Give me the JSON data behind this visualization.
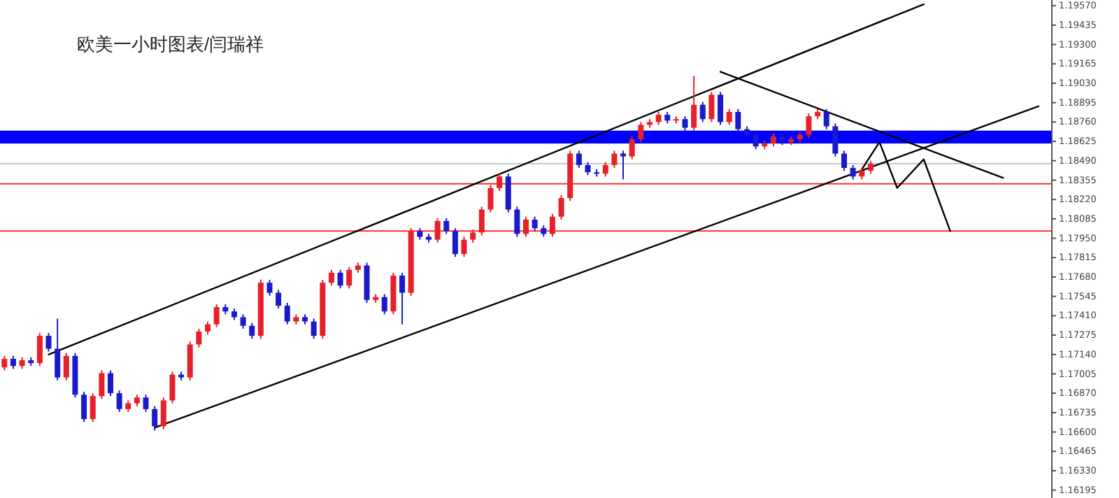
{
  "chart_data": {
    "type": "candlestick",
    "title": "欧美一小时图表/闫瑞祥",
    "categories": [
      null,
      null,
      null,
      null,
      null,
      null,
      null,
      null,
      null,
      null,
      null,
      null,
      null,
      null,
      null,
      null,
      null,
      null,
      null,
      null,
      null,
      null,
      null,
      null,
      null,
      null,
      null,
      null,
      null,
      null,
      null,
      null,
      null,
      null,
      null,
      null,
      null,
      null,
      null,
      null,
      null,
      null,
      null,
      null,
      null,
      null,
      null,
      null,
      null,
      null,
      null,
      null,
      null,
      null,
      null,
      null,
      null,
      null,
      null,
      null,
      null,
      null,
      null,
      null,
      null,
      null,
      null,
      null,
      null,
      null,
      null,
      null,
      null,
      null,
      null,
      null,
      null,
      null,
      null,
      null,
      null,
      null,
      null,
      null,
      null,
      null,
      null,
      null,
      null,
      null,
      null,
      null,
      null,
      null,
      null,
      null,
      null,
      null,
      null,
      null,
      null,
      null,
      null,
      null,
      null,
      null,
      null,
      null,
      null,
      null,
      null,
      null,
      null,
      null,
      null,
      null,
      null,
      null,
      null
    ],
    "ohlc": [
      [
        1.1705,
        1.1713,
        1.1703,
        1.1711
      ],
      [
        1.1711,
        1.1713,
        1.1704,
        1.1706
      ],
      [
        1.1706,
        1.1712,
        1.1704,
        1.171
      ],
      [
        1.171,
        1.1712,
        1.1706,
        1.1708
      ],
      [
        1.1708,
        1.1729,
        1.1706,
        1.1727
      ],
      [
        1.1727,
        1.1729,
        1.1716,
        1.1718
      ],
      [
        1.1718,
        1.1739,
        1.1696,
        1.1698
      ],
      [
        1.1698,
        1.1715,
        1.1696,
        1.1713
      ],
      [
        1.1713,
        1.1715,
        1.1684,
        1.1686
      ],
      [
        1.1686,
        1.1688,
        1.1667,
        1.1669
      ],
      [
        1.1669,
        1.1687,
        1.1667,
        1.1685
      ],
      [
        1.1685,
        1.1703,
        1.1683,
        1.1701
      ],
      [
        1.1701,
        1.1703,
        1.1685,
        1.1687
      ],
      [
        1.1687,
        1.1689,
        1.1674,
        1.1676
      ],
      [
        1.1676,
        1.1682,
        1.1674,
        1.168
      ],
      [
        1.168,
        1.1686,
        1.1678,
        1.1684
      ],
      [
        1.1684,
        1.1686,
        1.1674,
        1.1676
      ],
      [
        1.1676,
        1.1678,
        1.1661,
        1.1664
      ],
      [
        1.1664,
        1.1684,
        1.1662,
        1.1682
      ],
      [
        1.1682,
        1.1702,
        1.168,
        1.17
      ],
      [
        1.17,
        1.1702,
        1.1696,
        1.1698
      ],
      [
        1.1698,
        1.1723,
        1.1696,
        1.1721
      ],
      [
        1.1721,
        1.1732,
        1.1719,
        1.173
      ],
      [
        1.173,
        1.1737,
        1.1728,
        1.1735
      ],
      [
        1.1735,
        1.1749,
        1.1733,
        1.1747
      ],
      [
        1.1747,
        1.1749,
        1.1742,
        1.1744
      ],
      [
        1.1744,
        1.1746,
        1.1738,
        1.174
      ],
      [
        1.174,
        1.1742,
        1.1732,
        1.1734
      ],
      [
        1.1734,
        1.1736,
        1.1725,
        1.1727
      ],
      [
        1.1727,
        1.1766,
        1.1725,
        1.1764
      ],
      [
        1.1764,
        1.1766,
        1.1755,
        1.1757
      ],
      [
        1.1757,
        1.1759,
        1.1746,
        1.1748
      ],
      [
        1.1748,
        1.175,
        1.1735,
        1.1737
      ],
      [
        1.1737,
        1.1742,
        1.1735,
        1.174
      ],
      [
        1.174,
        1.1742,
        1.1735,
        1.1737
      ],
      [
        1.1737,
        1.1739,
        1.1725,
        1.1727
      ],
      [
        1.1727,
        1.1766,
        1.1725,
        1.1764
      ],
      [
        1.1764,
        1.1773,
        1.1762,
        1.1771
      ],
      [
        1.1771,
        1.1773,
        1.176,
        1.1762
      ],
      [
        1.1762,
        1.1775,
        1.176,
        1.1773
      ],
      [
        1.1773,
        1.1778,
        1.1771,
        1.1776
      ],
      [
        1.1776,
        1.1778,
        1.175,
        1.1752
      ],
      [
        1.1752,
        1.1756,
        1.175,
        1.1754
      ],
      [
        1.1754,
        1.1756,
        1.1742,
        1.1744
      ],
      [
        1.1744,
        1.1771,
        1.1742,
        1.1769
      ],
      [
        1.1769,
        1.1771,
        1.1735,
        1.1757
      ],
      [
        1.1757,
        1.1802,
        1.1755,
        1.18
      ],
      [
        1.18,
        1.1802,
        1.1794,
        1.1796
      ],
      [
        1.1796,
        1.1798,
        1.1792,
        1.1794
      ],
      [
        1.1794,
        1.1809,
        1.1792,
        1.1807
      ],
      [
        1.1807,
        1.1809,
        1.1798,
        1.18
      ],
      [
        1.18,
        1.1802,
        1.1782,
        1.1784
      ],
      [
        1.1784,
        1.1796,
        1.1782,
        1.1794
      ],
      [
        1.1794,
        1.1801,
        1.1792,
        1.1799
      ],
      [
        1.1799,
        1.1817,
        1.1797,
        1.1815
      ],
      [
        1.1815,
        1.1832,
        1.1813,
        1.183
      ],
      [
        1.183,
        1.184,
        1.1828,
        1.1838
      ],
      [
        1.1838,
        1.184,
        1.1813,
        1.1815
      ],
      [
        1.1815,
        1.1817,
        1.1796,
        1.1798
      ],
      [
        1.1798,
        1.181,
        1.1796,
        1.1808
      ],
      [
        1.1808,
        1.181,
        1.18,
        1.1802
      ],
      [
        1.1802,
        1.1804,
        1.1796,
        1.1798
      ],
      [
        1.1798,
        1.1812,
        1.1796,
        1.181
      ],
      [
        1.181,
        1.1825,
        1.1808,
        1.1823
      ],
      [
        1.1823,
        1.1856,
        1.1821,
        1.1854
      ],
      [
        1.1854,
        1.1856,
        1.1844,
        1.1846
      ],
      [
        1.1846,
        1.1848,
        1.1839,
        1.1841
      ],
      [
        1.1841,
        1.1843,
        1.1838,
        1.184
      ],
      [
        1.184,
        1.1848,
        1.1838,
        1.1846
      ],
      [
        1.1846,
        1.1856,
        1.1844,
        1.1854
      ],
      [
        1.1854,
        1.1856,
        1.1836,
        1.1852
      ],
      [
        1.1852,
        1.1866,
        1.185,
        1.1864
      ],
      [
        1.1864,
        1.1876,
        1.1862,
        1.1874
      ],
      [
        1.1874,
        1.1878,
        1.1872,
        1.1876
      ],
      [
        1.1876,
        1.1883,
        1.1874,
        1.1881
      ],
      [
        1.1881,
        1.1883,
        1.1875,
        1.1877
      ],
      [
        1.1877,
        1.188,
        1.1875,
        1.1878
      ],
      [
        1.1878,
        1.188,
        1.187,
        1.1872
      ],
      [
        1.1872,
        1.1908,
        1.187,
        1.1888
      ],
      [
        1.1888,
        1.189,
        1.1876,
        1.1878
      ],
      [
        1.1878,
        1.1897,
        1.1876,
        1.1895
      ],
      [
        1.1895,
        1.1897,
        1.1874,
        1.1876
      ],
      [
        1.1876,
        1.1885,
        1.1874,
        1.1883
      ],
      [
        1.1883,
        1.1885,
        1.1869,
        1.1871
      ],
      [
        1.1871,
        1.1873,
        1.1865,
        1.1867
      ],
      [
        1.1867,
        1.1869,
        1.1857,
        1.1859
      ],
      [
        1.1859,
        1.1863,
        1.1857,
        1.1861
      ],
      [
        1.1861,
        1.1868,
        1.1859,
        1.1866
      ],
      [
        1.1866,
        1.1868,
        1.186,
        1.1862
      ],
      [
        1.1862,
        1.1866,
        1.186,
        1.1864
      ],
      [
        1.1864,
        1.1869,
        1.1862,
        1.1867
      ],
      [
        1.1867,
        1.1882,
        1.1865,
        1.188
      ],
      [
        1.188,
        1.1885,
        1.1878,
        1.1883
      ],
      [
        1.1883,
        1.1885,
        1.1871,
        1.1873
      ],
      [
        1.1873,
        1.1875,
        1.1852,
        1.1854
      ],
      [
        1.1854,
        1.1856,
        1.1842,
        1.1844
      ],
      [
        1.1844,
        1.1846,
        1.1836,
        1.1838
      ],
      [
        1.1838,
        1.1844,
        1.1836,
        1.1842
      ],
      [
        1.1842,
        1.1849,
        1.184,
        1.1847
      ],
      null,
      null,
      null,
      null,
      null,
      null,
      null,
      null,
      null,
      null,
      null,
      null,
      null,
      null,
      null,
      null,
      null,
      null,
      null,
      null
    ],
    "colors": [
      "#e8202a",
      "#1a1acc",
      "#e8202a",
      "#1a1acc",
      "#e8202a",
      "#1a1acc",
      "#1a1acc",
      "#e8202a",
      "#1a1acc",
      "#1a1acc",
      "#e8202a",
      "#e8202a",
      "#1a1acc",
      "#1a1acc",
      "#e8202a",
      "#e8202a",
      "#1a1acc",
      "#1a1acc",
      "#e8202a",
      "#e8202a",
      "#1a1acc",
      "#e8202a",
      "#e8202a",
      "#e8202a",
      "#e8202a",
      "#1a1acc",
      "#1a1acc",
      "#1a1acc",
      "#1a1acc",
      "#e8202a",
      "#1a1acc",
      "#1a1acc",
      "#1a1acc",
      "#e8202a",
      "#1a1acc",
      "#1a1acc",
      "#e8202a",
      "#e8202a",
      "#1a1acc",
      "#e8202a",
      "#e8202a",
      "#1a1acc",
      "#e8202a",
      "#1a1acc",
      "#e8202a",
      "#1a1acc",
      "#e8202a",
      "#1a1acc",
      "#1a1acc",
      "#e8202a",
      "#1a1acc",
      "#1a1acc",
      "#e8202a",
      "#e8202a",
      "#e8202a",
      "#e8202a",
      "#e8202a",
      "#1a1acc",
      "#1a1acc",
      "#e8202a",
      "#1a1acc",
      "#1a1acc",
      "#e8202a",
      "#e8202a",
      "#e8202a",
      "#1a1acc",
      "#1a1acc",
      "#1a1acc",
      "#e8202a",
      "#e8202a",
      "#1a1acc",
      "#e8202a",
      "#e8202a",
      "#e8202a",
      "#e8202a",
      "#1a1acc",
      "#e8202a",
      "#1a1acc",
      "#e8202a",
      "#1a1acc",
      "#e8202a",
      "#1a1acc",
      "#e8202a",
      "#1a1acc",
      "#1a1acc",
      "#1a1acc",
      "#e8202a",
      "#e8202a",
      "#1a1acc",
      "#e8202a",
      "#e8202a",
      "#e8202a",
      "#e8202a",
      "#1a1acc",
      "#1a1acc",
      "#1a1acc",
      "#1a1acc",
      "#e8202a",
      "#e8202a",
      null,
      null,
      null,
      null,
      null,
      null,
      null,
      null,
      null,
      null,
      null,
      null,
      null,
      null,
      null,
      null,
      null,
      null,
      null,
      null
    ],
    "series": [
      {
        "type": "line",
        "color": "#000000",
        "values": [
          null,
          null,
          null,
          null,
          null,
          1.1714,
          null,
          null,
          null,
          null,
          null,
          null,
          null,
          null,
          null,
          null,
          null,
          null,
          null,
          null,
          null,
          null,
          null,
          null,
          null,
          null,
          null,
          null,
          null,
          null,
          null,
          null,
          null,
          null,
          null,
          null,
          null,
          null,
          null,
          null,
          null,
          null,
          null,
          null,
          null,
          null,
          null,
          null,
          null,
          null,
          null,
          null,
          null,
          null,
          null,
          null,
          null,
          null,
          null,
          null,
          null,
          null,
          null,
          null,
          null,
          null,
          null,
          null,
          null,
          null,
          null,
          null,
          null,
          null,
          null,
          null,
          null,
          null,
          null,
          null,
          null,
          null,
          null,
          null,
          null,
          null,
          null,
          null,
          null,
          null,
          null,
          null,
          null,
          null,
          null,
          null,
          null,
          null,
          null,
          null,
          null,
          null,
          null,
          null,
          1.1958,
          null,
          null,
          null,
          null,
          null,
          null,
          null,
          null,
          null,
          null,
          null,
          null,
          null,
          null
        ]
      },
      {
        "type": "line",
        "color": "#000000",
        "values": [
          null,
          null,
          null,
          null,
          null,
          null,
          null,
          null,
          null,
          null,
          null,
          null,
          null,
          null,
          null,
          null,
          null,
          1.1663,
          null,
          null,
          null,
          null,
          null,
          null,
          null,
          null,
          null,
          null,
          null,
          null,
          null,
          null,
          null,
          null,
          null,
          null,
          null,
          null,
          null,
          null,
          null,
          null,
          null,
          null,
          null,
          null,
          null,
          null,
          null,
          null,
          null,
          null,
          null,
          null,
          null,
          null,
          null,
          null,
          null,
          null,
          null,
          null,
          null,
          null,
          null,
          null,
          null,
          null,
          null,
          null,
          null,
          null,
          null,
          null,
          null,
          null,
          null,
          null,
          null,
          null,
          null,
          null,
          null,
          null,
          null,
          null,
          null,
          null,
          null,
          null,
          null,
          null,
          null,
          null,
          null,
          null,
          null,
          null,
          null,
          null,
          null,
          null,
          null,
          null,
          null,
          null,
          null,
          null,
          null,
          null,
          null,
          null,
          null,
          null,
          null,
          null,
          null,
          1.1887,
          null
        ]
      },
      {
        "type": "line",
        "color": "#000000",
        "values": [
          null,
          null,
          null,
          null,
          null,
          null,
          null,
          null,
          null,
          null,
          null,
          null,
          null,
          null,
          null,
          null,
          null,
          null,
          null,
          null,
          null,
          null,
          null,
          null,
          null,
          null,
          null,
          null,
          null,
          null,
          null,
          null,
          null,
          null,
          null,
          null,
          null,
          null,
          null,
          null,
          null,
          null,
          null,
          null,
          null,
          null,
          null,
          null,
          null,
          null,
          null,
          null,
          null,
          null,
          null,
          null,
          null,
          null,
          null,
          null,
          null,
          null,
          null,
          null,
          null,
          null,
          null,
          null,
          null,
          null,
          null,
          null,
          null,
          null,
          null,
          null,
          null,
          null,
          null,
          null,
          null,
          1.1911,
          null,
          null,
          null,
          null,
          null,
          null,
          null,
          null,
          null,
          null,
          null,
          null,
          null,
          null,
          null,
          null,
          null,
          null,
          null,
          null,
          null,
          null,
          null,
          null,
          null,
          null,
          null,
          null,
          null,
          null,
          null,
          1.1837,
          null,
          null,
          null,
          null,
          null
        ]
      },
      {
        "type": "line",
        "color": "#000000",
        "values": [
          null,
          null,
          null,
          null,
          null,
          null,
          null,
          null,
          null,
          null,
          null,
          null,
          null,
          null,
          null,
          null,
          null,
          null,
          null,
          null,
          null,
          null,
          null,
          null,
          null,
          null,
          null,
          null,
          null,
          null,
          null,
          null,
          null,
          null,
          null,
          null,
          null,
          null,
          null,
          null,
          null,
          null,
          null,
          null,
          null,
          null,
          null,
          null,
          null,
          null,
          null,
          null,
          null,
          null,
          null,
          null,
          null,
          null,
          null,
          null,
          null,
          null,
          null,
          null,
          null,
          null,
          null,
          null,
          null,
          null,
          null,
          null,
          null,
          null,
          null,
          null,
          null,
          null,
          null,
          null,
          null,
          null,
          null,
          null,
          null,
          null,
          null,
          null,
          null,
          null,
          null,
          null,
          null,
          null,
          null,
          null,
          null,
          1.1843,
          null,
          1.1862,
          null,
          1.183,
          null,
          null,
          1.185,
          null,
          null,
          1.18,
          null,
          null,
          null,
          null,
          null,
          null,
          null,
          null,
          null,
          null,
          null
        ]
      }
    ],
    "bands": [
      {
        "axis": "y",
        "from": 1.1861,
        "to": 1.187,
        "color": "#0000ff"
      }
    ],
    "ref_lines": [
      {
        "axis": "y",
        "value": 1.1847,
        "color": "#c8c8c8"
      },
      {
        "axis": "y",
        "value": 1.1833,
        "color": "#ff3030"
      },
      {
        "axis": "y",
        "value": 1.18,
        "color": "#ff3030"
      }
    ],
    "ylim": [
      1.1614,
      1.1961
    ],
    "yticks": [
      {
        "value": 1.1957,
        "label": "1.19570"
      },
      {
        "value": 1.19435,
        "label": "1.19435"
      },
      {
        "value": 1.193,
        "label": "1.19300"
      },
      {
        "value": 1.19165,
        "label": "1.19165"
      },
      {
        "value": 1.1903,
        "label": "1.19030"
      },
      {
        "value": 1.18895,
        "label": "1.18895"
      },
      {
        "value": 1.1876,
        "label": "1.18760"
      },
      {
        "value": 1.18625,
        "label": "1.18625"
      },
      {
        "value": 1.1849,
        "label": "1.18490"
      },
      {
        "value": 1.18355,
        "label": "1.18355"
      },
      {
        "value": 1.1822,
        "label": "1.18220"
      },
      {
        "value": 1.18085,
        "label": "1.18085"
      },
      {
        "value": 1.1795,
        "label": "1.17950"
      },
      {
        "value": 1.17815,
        "label": "1.17815"
      },
      {
        "value": 1.1768,
        "label": "1.17680"
      },
      {
        "value": 1.17545,
        "label": "1.17545"
      },
      {
        "value": 1.1741,
        "label": "1.17410"
      },
      {
        "value": 1.17275,
        "label": "1.17275"
      },
      {
        "value": 1.1714,
        "label": "1.17140"
      },
      {
        "value": 1.17005,
        "label": "1.17005"
      },
      {
        "value": 1.1687,
        "label": "1.16870"
      },
      {
        "value": 1.16735,
        "label": "1.16735"
      },
      {
        "value": 1.166,
        "label": "1.16600"
      },
      {
        "value": 1.16465,
        "label": "1.16465"
      },
      {
        "value": 1.1633,
        "label": "1.16330"
      },
      {
        "value": 1.16195,
        "label": "1.16195"
      }
    ],
    "tick_labels": "y"
  }
}
